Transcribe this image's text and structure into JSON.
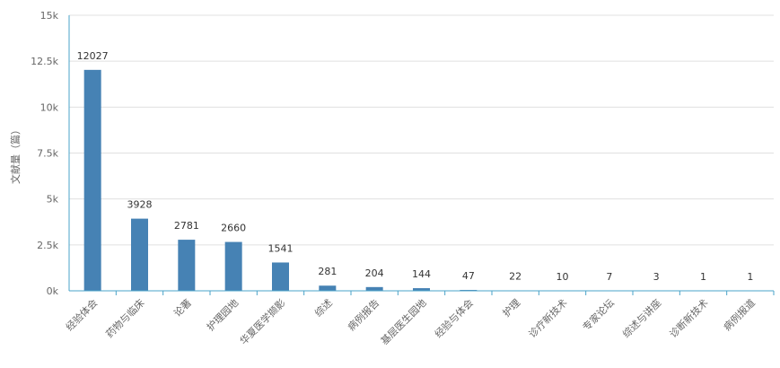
{
  "chart_data": {
    "type": "bar",
    "categories": [
      "经验体会",
      "药物与临床",
      "论著",
      "护理园地",
      "华夏医学撷影",
      "综述",
      "病例报告",
      "基层医生园地",
      "经验与体会",
      "护理",
      "诊疗新技术",
      "专家论坛",
      "综述与讲座",
      "诊断新技术",
      "病例报道"
    ],
    "values": [
      12027,
      3928,
      2781,
      2660,
      1541,
      281,
      204,
      144,
      47,
      22,
      10,
      7,
      3,
      1,
      1
    ],
    "title": "",
    "xlabel": "",
    "ylabel": "文献量（篇）",
    "ylim": [
      0,
      15000
    ],
    "yticks": [
      0,
      2500,
      5000,
      7500,
      10000,
      12500,
      15000
    ],
    "ytick_labels": [
      "0k",
      "2.5k",
      "5k",
      "7.5k",
      "10k",
      "12.5k",
      "15k"
    ],
    "grid": true,
    "data_labels": true,
    "colors": {
      "bar": "#4682b4",
      "grid": "#e0e0e0",
      "axis": "#4aa3c8"
    }
  }
}
